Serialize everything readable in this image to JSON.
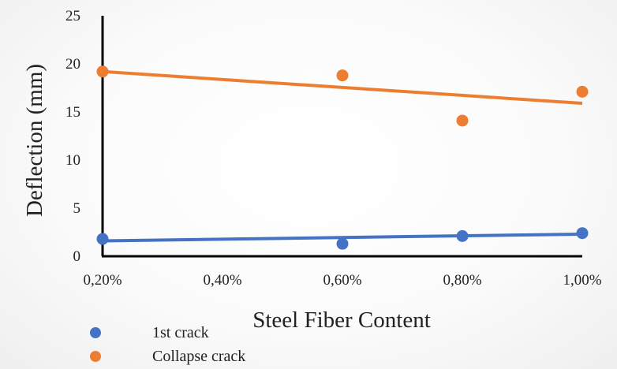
{
  "chart_data": {
    "type": "scatter",
    "xlabel": "Steel Fiber Content",
    "ylabel": "Deflection (mm)",
    "x": [
      "0,20%",
      "0,40%",
      "0,60%",
      "0,80%",
      "1,00%"
    ],
    "x_values": [
      0.2,
      0.4,
      0.6,
      0.8,
      1.0
    ],
    "ylim": [
      0,
      25
    ],
    "yticks": [
      0,
      5,
      10,
      15,
      20,
      25
    ],
    "grid": false,
    "legend_position": "bottom-left",
    "series": [
      {
        "name": "1st crack",
        "color": "#4472C4",
        "points": [
          [
            0.2,
            1.8
          ],
          [
            0.6,
            1.3
          ],
          [
            0.8,
            2.1
          ],
          [
            1.0,
            2.4
          ]
        ],
        "trendline": [
          [
            0.2,
            1.6
          ],
          [
            1.0,
            2.3
          ]
        ]
      },
      {
        "name": "Collapse crack",
        "color": "#ED7D31",
        "points": [
          [
            0.2,
            19.2
          ],
          [
            0.6,
            18.8
          ],
          [
            0.8,
            14.1
          ],
          [
            1.0,
            17.1
          ]
        ],
        "trendline": [
          [
            0.2,
            19.2
          ],
          [
            1.0,
            15.9
          ]
        ]
      }
    ]
  }
}
